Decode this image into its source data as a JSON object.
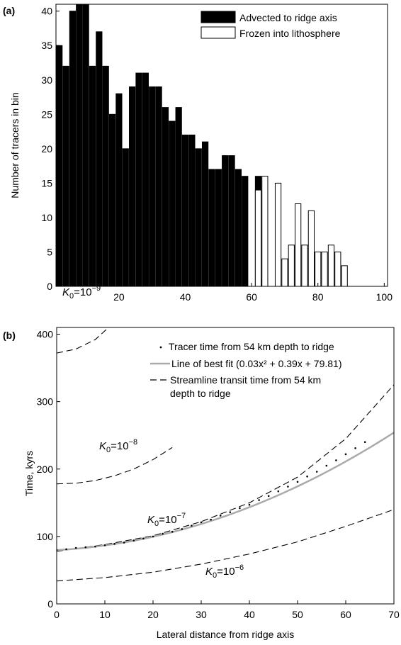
{
  "chart_data": [
    {
      "panel": "(a)",
      "type": "bar",
      "ylabel": "Number of tracers in bin",
      "xlabel": "",
      "xlim": [
        1,
        101
      ],
      "ylim": [
        0,
        41
      ],
      "xticks": [
        20,
        40,
        60,
        80,
        100
      ],
      "yticks": [
        0,
        5,
        10,
        15,
        20,
        25,
        30,
        35,
        40
      ],
      "bin_width": 2,
      "legend_position": "top-right",
      "series": [
        {
          "name": "Advected to ridge axis",
          "color": "#000000",
          "x": [
            2,
            4,
            6,
            8,
            10,
            12,
            14,
            16,
            18,
            20,
            22,
            24,
            26,
            28,
            30,
            32,
            34,
            36,
            38,
            40,
            42,
            44,
            46,
            48,
            50,
            52,
            54,
            56,
            58,
            60,
            62,
            64,
            66,
            68,
            70,
            72,
            74,
            76,
            78,
            80,
            82,
            84,
            86,
            88,
            90,
            92,
            94,
            96,
            98
          ],
          "values": [
            35,
            32,
            40,
            41,
            41,
            32,
            37,
            32,
            25,
            28,
            20,
            29,
            31,
            31,
            29,
            29,
            26,
            24,
            26,
            22,
            22,
            20,
            21,
            17,
            17,
            19,
            19,
            17,
            16,
            0,
            16,
            1,
            0,
            0,
            0,
            0,
            0,
            0,
            0,
            0,
            0,
            0,
            0,
            0,
            0,
            0,
            0,
            0,
            0
          ]
        },
        {
          "name": "Frozen into lithosphere",
          "color": "#ffffff",
          "x": [
            2,
            4,
            6,
            8,
            10,
            12,
            14,
            16,
            18,
            20,
            22,
            24,
            26,
            28,
            30,
            32,
            34,
            36,
            38,
            40,
            42,
            44,
            46,
            48,
            50,
            52,
            54,
            56,
            58,
            60,
            62,
            64,
            66,
            68,
            70,
            72,
            74,
            76,
            78,
            80,
            82,
            84,
            86,
            88,
            90,
            92,
            94,
            96,
            98
          ],
          "values": [
            0,
            0,
            0,
            0,
            0,
            0,
            0,
            0,
            0,
            0,
            0,
            0,
            0,
            0,
            0,
            0,
            0,
            0,
            0,
            0,
            0,
            0,
            0,
            0,
            0,
            0,
            0,
            0,
            0,
            0,
            14,
            16,
            0,
            15,
            4,
            6,
            12,
            6,
            11,
            5,
            5,
            6,
            5,
            3,
            0,
            0,
            0,
            0,
            0
          ]
        }
      ]
    },
    {
      "panel": "(b)",
      "type": "line",
      "xlabel": "Lateral distance from ridge axis",
      "ylabel": "Time, kyrs",
      "xlim": [
        0,
        70
      ],
      "ylim": [
        0,
        410
      ],
      "xticks": [
        0,
        10,
        20,
        30,
        40,
        50,
        60,
        70
      ],
      "yticks": [
        0,
        100,
        200,
        300,
        400
      ],
      "legend_position": "top-right",
      "legend": [
        {
          "label": "Tracer time from 54 km depth to ridge",
          "style": "dots"
        },
        {
          "label": "Line of best fit  (0.03x² + 0.39x + 79.81)",
          "style": "solid-gray"
        },
        {
          "label_line1": "Streamline transit time from 54 km",
          "label_line2": "depth to ridge",
          "style": "dashed"
        }
      ],
      "best_fit": {
        "a": 0.03,
        "b": 0.39,
        "c": 79.81,
        "x_range": [
          0,
          70
        ],
        "color": "#aaaaaa"
      },
      "tracers": {
        "x": [
          0,
          2,
          4,
          6,
          8,
          10,
          12,
          14,
          16,
          18,
          20,
          22,
          24,
          26,
          28,
          30,
          32,
          34,
          36,
          38,
          40,
          42,
          44,
          46,
          48,
          50,
          52,
          54,
          56,
          58,
          60,
          62,
          64
        ],
        "y": [
          80,
          81,
          83,
          84,
          85,
          87,
          89,
          91,
          94,
          97,
          100,
          104,
          107,
          111,
          116,
          121,
          125,
          131,
          136,
          142,
          147,
          154,
          160,
          167,
          174,
          181,
          189,
          196,
          205,
          213,
          222,
          231,
          240
        ]
      },
      "streamlines": [
        {
          "label_prefix": "K",
          "label_sub": "0",
          "label_eq": "=10",
          "label_exp": "−9",
          "x": [
            0,
            4,
            8,
            12,
            14,
            16
          ],
          "y": [
            372,
            378,
            392,
            418,
            438,
            460
          ]
        },
        {
          "label_prefix": "K",
          "label_sub": "0",
          "label_eq": "=10",
          "label_exp": "−8",
          "x": [
            0,
            4,
            8,
            12,
            16,
            20,
            24
          ],
          "y": [
            178,
            179,
            183,
            190,
            200,
            214,
            232
          ]
        },
        {
          "label_prefix": "K",
          "label_sub": "0",
          "label_eq": "=10",
          "label_exp": "−7",
          "x": [
            0,
            10,
            20,
            30,
            40,
            50,
            60,
            70
          ],
          "y": [
            78,
            88,
            101,
            122,
            150,
            188,
            245,
            325
          ]
        },
        {
          "label_prefix": "K",
          "label_sub": "0",
          "label_eq": "=10",
          "label_exp": "−6",
          "x": [
            0,
            10,
            20,
            30,
            40,
            50,
            60,
            70
          ],
          "y": [
            34,
            39,
            47,
            59,
            74,
            92,
            115,
            140
          ]
        }
      ]
    }
  ]
}
